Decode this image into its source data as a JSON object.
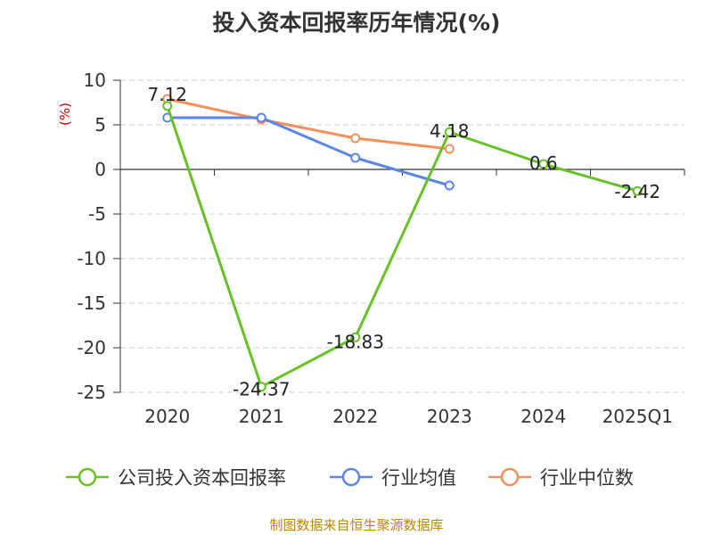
{
  "chart_data": {
    "type": "line",
    "title": "投入资本回报率历年情况(%)",
    "ylabel": "(%)",
    "xlabel": "",
    "categories": [
      "2020",
      "2021",
      "2022",
      "2023",
      "2024",
      "2025Q1"
    ],
    "ylim": [
      -25,
      10
    ],
    "yticks": [
      10,
      5,
      0,
      -5,
      -10,
      -15,
      -20,
      -25
    ],
    "grid": true,
    "legend_position": "bottom",
    "series": [
      {
        "name": "公司投入资本回报率",
        "color": "#66c227",
        "values": [
          7.12,
          -24.37,
          -18.83,
          4.18,
          0.6,
          -2.42
        ],
        "labels": [
          "7.12",
          "-24.37",
          "-18.83",
          "4.18",
          "0.6",
          "-2.42"
        ]
      },
      {
        "name": "行业均值",
        "color": "#5b86e5",
        "values": [
          5.8,
          5.8,
          1.3,
          -1.8,
          null,
          null
        ]
      },
      {
        "name": "行业中位数",
        "color": "#f5905a",
        "values": [
          7.9,
          5.6,
          3.5,
          2.3,
          null,
          null
        ]
      }
    ]
  },
  "source": "制图数据来自恒生聚源数据库"
}
